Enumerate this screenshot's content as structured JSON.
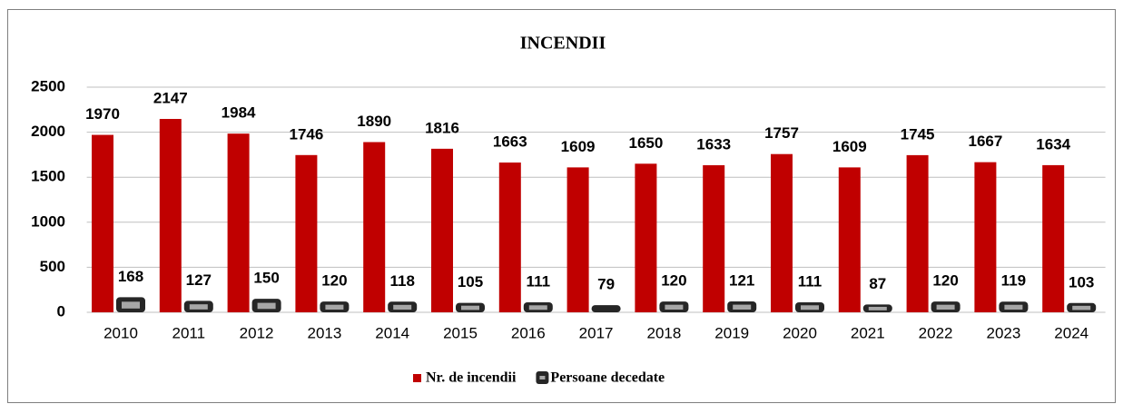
{
  "chart_data": {
    "type": "bar",
    "title": "INCENDII",
    "categories": [
      "2010",
      "2011",
      "2012",
      "2013",
      "2014",
      "2015",
      "2016",
      "2017",
      "2018",
      "2019",
      "2020",
      "2021",
      "2022",
      "2023",
      "2024"
    ],
    "series": [
      {
        "name": "Nr. de incendii",
        "color": "#c00000",
        "values": [
          1970,
          2147,
          1984,
          1746,
          1890,
          1816,
          1663,
          1609,
          1650,
          1633,
          1757,
          1609,
          1745,
          1667,
          1634
        ]
      },
      {
        "name": "Persoane decedate",
        "color": "#262626",
        "values": [
          168,
          127,
          150,
          120,
          118,
          105,
          111,
          79,
          120,
          121,
          111,
          87,
          120,
          119,
          103
        ]
      }
    ],
    "ylim": [
      0,
      2500
    ],
    "yticks": [
      0,
      500,
      1000,
      1500,
      2000,
      2500
    ],
    "grid": true,
    "legend": "bottom"
  }
}
